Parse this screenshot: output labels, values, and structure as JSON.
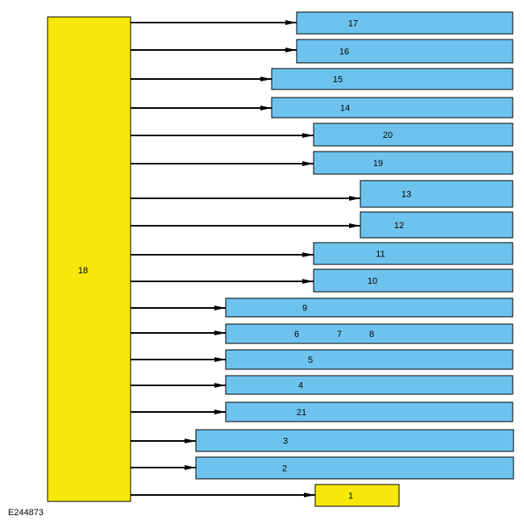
{
  "source": {
    "label": "18"
  },
  "targets": [
    {
      "labels": [
        "17"
      ]
    },
    {
      "labels": [
        "16"
      ]
    },
    {
      "labels": [
        "15"
      ]
    },
    {
      "labels": [
        "14"
      ]
    },
    {
      "labels": [
        "20"
      ]
    },
    {
      "labels": [
        "19"
      ]
    },
    {
      "labels": [
        "13"
      ]
    },
    {
      "labels": [
        "12"
      ]
    },
    {
      "labels": [
        "11"
      ]
    },
    {
      "labels": [
        "10"
      ]
    },
    {
      "labels": [
        "9"
      ]
    },
    {
      "labels": [
        "6",
        "7",
        "8"
      ]
    },
    {
      "labels": [
        "5"
      ]
    },
    {
      "labels": [
        "4"
      ]
    },
    {
      "labels": [
        "21"
      ]
    },
    {
      "labels": [
        "3"
      ]
    },
    {
      "labels": [
        "2"
      ]
    },
    {
      "labels": [
        "1"
      ]
    }
  ],
  "caption": "E244873"
}
